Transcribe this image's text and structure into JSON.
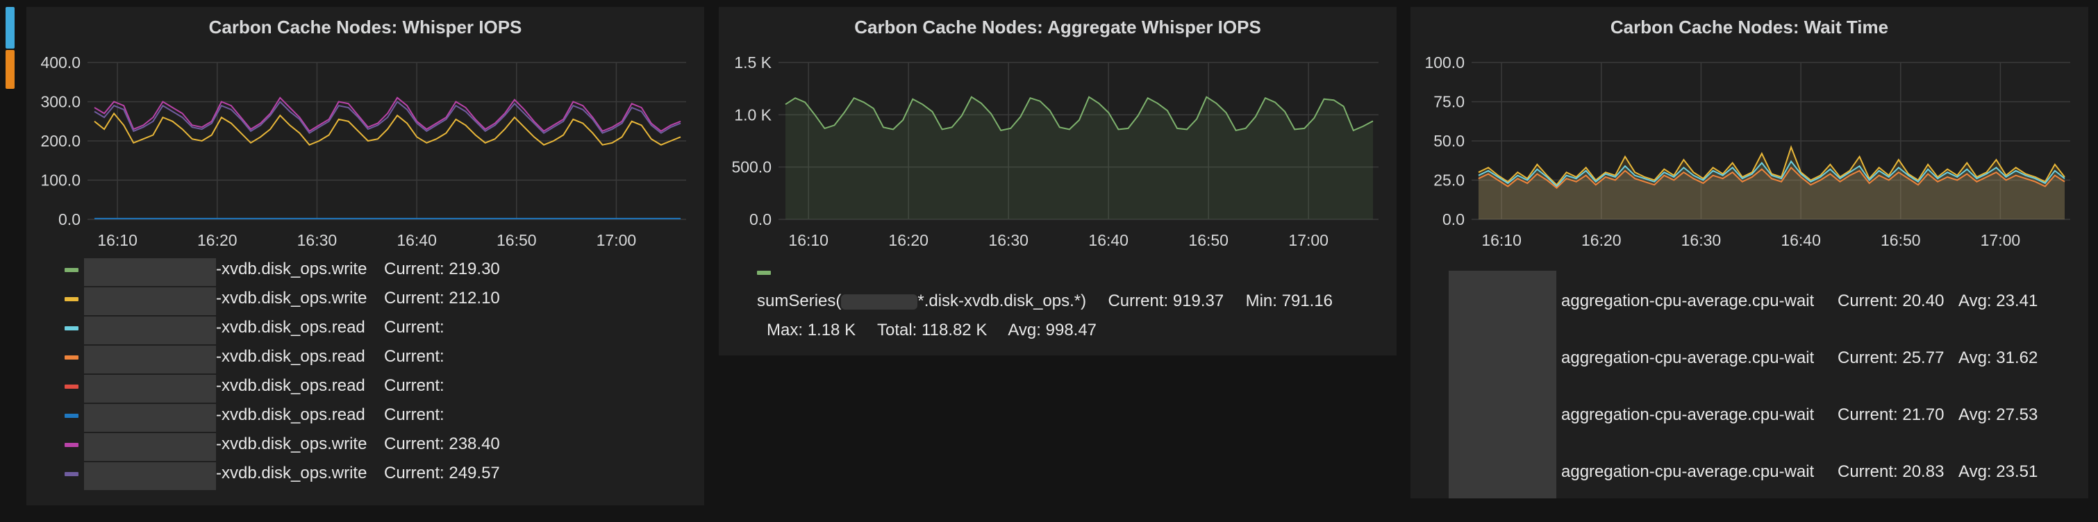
{
  "row_markers": [
    {
      "color": "#3fa9dc",
      "top": 10,
      "height": 60
    },
    {
      "color": "#e8861c",
      "top": 72,
      "height": 56
    }
  ],
  "panels": [
    {
      "title": "Carbon Cache Nodes: Whisper IOPS",
      "chart_data": {
        "type": "line",
        "x_ticks": [
          "16:10",
          "16:20",
          "16:30",
          "16:40",
          "16:50",
          "17:00"
        ],
        "x_range": [
          "16:07",
          "17:07"
        ],
        "y_ticks": [
          "400.0",
          "300.0",
          "200.0",
          "100.0",
          "0.0"
        ],
        "ylim": [
          0,
          400
        ],
        "grid": true,
        "fill": false,
        "series": [
          {
            "color": "#7eb26d",
            "values": []
          },
          {
            "color": "#eab839",
            "values": [
              250,
              230,
              270,
              240,
              195,
              205,
              215,
              260,
              250,
              230,
              205,
              200,
              215,
              260,
              245,
              220,
              195,
              210,
              230,
              265,
              240,
              220,
              190,
              200,
              215,
              255,
              250,
              225,
              200,
              205,
              230,
              265,
              245,
              210,
              195,
              205,
              220,
              255,
              240,
              215,
              195,
              205,
              230,
              260,
              235,
              210,
              190,
              200,
              215,
              255,
              245,
              220,
              190,
              195,
              210,
              250,
              240,
              205,
              190,
              200,
              210
            ]
          },
          {
            "color": "#6ed0e0",
            "values": []
          },
          {
            "color": "#ef843c",
            "values": []
          },
          {
            "color": "#e24d42",
            "values": []
          },
          {
            "color": "#1f78c1",
            "values": [
              2,
              2,
              2,
              2,
              2,
              2,
              2,
              2,
              2,
              2,
              2,
              2,
              2,
              2,
              2,
              2,
              2,
              2,
              2,
              2,
              2,
              2,
              2,
              2,
              2,
              2,
              2,
              2,
              2,
              2,
              2,
              2,
              2,
              2,
              2,
              2,
              2,
              2,
              2,
              2,
              2,
              2,
              2,
              2,
              2,
              2,
              2,
              2,
              2,
              2,
              2,
              2,
              2,
              2,
              2,
              2,
              2,
              2,
              2,
              2,
              2
            ]
          },
          {
            "color": "#ba43a9",
            "values": [
              285,
              270,
              300,
              290,
              230,
              240,
              260,
              300,
              285,
              270,
              240,
              235,
              250,
              300,
              290,
              260,
              230,
              245,
              270,
              310,
              285,
              260,
              225,
              240,
              255,
              300,
              295,
              265,
              235,
              245,
              270,
              310,
              290,
              250,
              230,
              245,
              260,
              300,
              285,
              255,
              230,
              245,
              270,
              305,
              280,
              250,
              225,
              240,
              255,
              300,
              290,
              260,
              225,
              235,
              250,
              295,
              285,
              245,
              225,
              240,
              250
            ]
          },
          {
            "color": "#705da0",
            "values": [
              275,
              260,
              290,
              280,
              225,
              235,
              250,
              290,
              275,
              260,
              235,
              230,
              245,
              290,
              280,
              255,
              225,
              240,
              265,
              300,
              275,
              255,
              220,
              235,
              250,
              290,
              285,
              260,
              230,
              240,
              260,
              300,
              280,
              245,
              225,
              240,
              255,
              290,
              275,
              250,
              225,
              240,
              265,
              295,
              270,
              245,
              220,
              235,
              250,
              290,
              280,
              255,
              220,
              230,
              245,
              285,
              275,
              240,
              220,
              235,
              245
            ]
          }
        ]
      },
      "legend": [
        {
          "color": "#7eb26d",
          "text": "-xvdb.disk_ops.write",
          "current_label": "Current:",
          "current": "219.30"
        },
        {
          "color": "#eab839",
          "text": "-xvdb.disk_ops.write",
          "current_label": "Current:",
          "current": "212.10"
        },
        {
          "color": "#6ed0e0",
          "text": "-xvdb.disk_ops.read",
          "current_label": "Current:",
          "current": ""
        },
        {
          "color": "#ef843c",
          "text": "-xvdb.disk_ops.read",
          "current_label": "Current:",
          "current": ""
        },
        {
          "color": "#e24d42",
          "text": "-xvdb.disk_ops.read",
          "current_label": "Current:",
          "current": ""
        },
        {
          "color": "#1f78c1",
          "text": "-xvdb.disk_ops.read",
          "current_label": "Current:",
          "current": ""
        },
        {
          "color": "#ba43a9",
          "text": "-xvdb.disk_ops.write",
          "current_label": "Current:",
          "current": "238.40"
        },
        {
          "color": "#705da0",
          "text": "-xvdb.disk_ops.write",
          "current_label": "Current:",
          "current": "249.57"
        }
      ]
    },
    {
      "title": "Carbon Cache Nodes: Aggregate Whisper IOPS",
      "chart_data": {
        "type": "area",
        "x_ticks": [
          "16:10",
          "16:20",
          "16:30",
          "16:40",
          "16:50",
          "17:00"
        ],
        "x_range": [
          "16:07",
          "17:07"
        ],
        "y_ticks": [
          "1.5 K",
          "1.0 K",
          "500.0",
          "0.0"
        ],
        "ylim": [
          0,
          1500
        ],
        "grid": true,
        "fill": true,
        "series": [
          {
            "color": "#7eb26d",
            "values": [
              1100,
              1160,
              1120,
              1000,
              870,
              900,
              1020,
              1160,
              1120,
              1060,
              880,
              860,
              950,
              1150,
              1100,
              1030,
              860,
              880,
              990,
              1170,
              1110,
              1010,
              850,
              870,
              980,
              1160,
              1130,
              1040,
              880,
              860,
              950,
              1170,
              1110,
              1020,
              860,
              870,
              990,
              1160,
              1110,
              1040,
              870,
              860,
              960,
              1170,
              1110,
              1020,
              850,
              870,
              980,
              1160,
              1120,
              1030,
              860,
              870,
              970,
              1150,
              1140,
              1080,
              850,
              890,
              940
            ]
          }
        ]
      },
      "legend_swatch": "#7eb26d",
      "legend_series": {
        "prefix": "sumSeries(",
        "suffix": "*.disk-xvdb.disk_ops.*)"
      },
      "stats_line1": [
        {
          "label": "Current:",
          "value": "919.37"
        },
        {
          "label": "Min:",
          "value": "791.16"
        }
      ],
      "stats_line2": [
        {
          "label": "Max:",
          "value": "1.18 K"
        },
        {
          "label": "Total:",
          "value": "118.82 K"
        },
        {
          "label": "Avg:",
          "value": "998.47"
        }
      ]
    },
    {
      "title": "Carbon Cache Nodes: Wait Time",
      "chart_data": {
        "type": "area",
        "x_ticks": [
          "16:10",
          "16:20",
          "16:30",
          "16:40",
          "16:50",
          "17:00"
        ],
        "x_range": [
          "16:07",
          "17:07"
        ],
        "y_ticks": [
          "100.0",
          "75.0",
          "50.0",
          "25.0",
          "0.0"
        ],
        "ylim": [
          0,
          100
        ],
        "grid": true,
        "fill": true,
        "series": [
          {
            "color": "#7eb26d",
            "values": []
          },
          {
            "color": "#eab839",
            "values": [
              30,
              33,
              28,
              24,
              30,
              26,
              35,
              28,
              22,
              30,
              27,
              33,
              25,
              30,
              28,
              40,
              30,
              27,
              25,
              32,
              28,
              38,
              30,
              26,
              33,
              29,
              36,
              27,
              30,
              42,
              29,
              27,
              46,
              30,
              25,
              28,
              35,
              27,
              31,
              40,
              26,
              33,
              28,
              38,
              29,
              25,
              35,
              27,
              32,
              28,
              36,
              27,
              30,
              38,
              28,
              33,
              29,
              27,
              24,
              35,
              27
            ]
          },
          {
            "color": "#6ed0e0",
            "values": [
              28,
              31,
              27,
              23,
              28,
              25,
              32,
              27,
              21,
              28,
              26,
              31,
              24,
              29,
              27,
              34,
              28,
              26,
              24,
              30,
              27,
              33,
              28,
              25,
              31,
              28,
              33,
              26,
              29,
              36,
              28,
              26,
              37,
              29,
              24,
              27,
              32,
              26,
              30,
              34,
              25,
              31,
              27,
              33,
              28,
              24,
              32,
              26,
              30,
              27,
              32,
              26,
              29,
              33,
              27,
              31,
              28,
              26,
              23,
              31,
              26
            ]
          },
          {
            "color": "#ef843c",
            "values": [
              26,
              29,
              25,
              21,
              26,
              23,
              29,
              25,
              20,
              26,
              24,
              28,
              22,
              27,
              25,
              31,
              26,
              24,
              22,
              28,
              25,
              30,
              26,
              23,
              28,
              26,
              30,
              24,
              27,
              32,
              26,
              24,
              33,
              27,
              22,
              25,
              29,
              24,
              28,
              31,
              23,
              28,
              25,
              30,
              26,
              22,
              29,
              24,
              27,
              25,
              29,
              24,
              27,
              30,
              25,
              28,
              26,
              24,
              21,
              28,
              24
            ]
          }
        ]
      },
      "legend_swatch": "#7eb26d",
      "legend": [
        {
          "color": "#6ed0e0",
          "text": "aggregation-cpu-average.cpu-wait",
          "current_label": "Current:",
          "current": "20.40",
          "avg_label": "Avg:",
          "avg": "23.41"
        },
        {
          "color": "#eab839",
          "text": "aggregation-cpu-average.cpu-wait",
          "current_label": "Current:",
          "current": "25.77",
          "avg_label": "Avg:",
          "avg": "31.62"
        },
        {
          "color": "#6ed0e0",
          "text": "aggregation-cpu-average.cpu-wait",
          "current_label": "Current:",
          "current": "21.70",
          "avg_label": "Avg:",
          "avg": "27.53"
        },
        {
          "color": "#ef843c",
          "text": "aggregation-cpu-average.cpu-wait",
          "current_label": "Current:",
          "current": "20.83",
          "avg_label": "Avg:",
          "avg": "23.51"
        }
      ]
    }
  ]
}
